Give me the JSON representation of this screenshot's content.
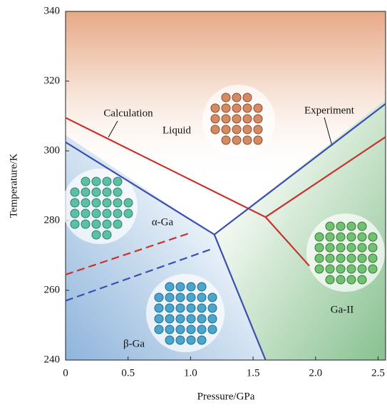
{
  "chart_data": {
    "type": "line",
    "xlabel": "Pressure/GPa",
    "ylabel": "Temperature/K",
    "xlim": [
      0,
      2.56
    ],
    "ylim": [
      240,
      340
    ],
    "xticks": [
      0,
      0.5,
      {
        "value": 1,
        "label": "1.0"
      },
      1.5,
      {
        "value": 2,
        "label": "2.0"
      },
      2.5
    ],
    "yticks": [
      240,
      260,
      280,
      300,
      320,
      340
    ],
    "series": [
      {
        "name": "Calculation",
        "color": "#c8342c",
        "x": [
          0,
          1.6,
          2.56,
          null,
          1.6,
          1.95
        ],
        "values": [
          309.5,
          281,
          304,
          null,
          281,
          267
        ]
      },
      {
        "name": "Experiment",
        "color": "#3a4fb0",
        "x": [
          0,
          1.19,
          2.56,
          null,
          1.19,
          1.6
        ],
        "values": [
          302.5,
          276,
          313.5,
          null,
          276,
          240
        ]
      },
      {
        "color": "#c8342c",
        "dashed": true,
        "x": [
          0,
          1.0
        ],
        "values": [
          264.5,
          276.5
        ]
      },
      {
        "color": "#3a4fb0",
        "dashed": true,
        "x": [
          0,
          1.18
        ],
        "values": [
          257,
          272
        ]
      }
    ],
    "annotations": [
      "Liquid",
      "α-Ga",
      "β-Ga",
      "Ga-II"
    ]
  }
}
